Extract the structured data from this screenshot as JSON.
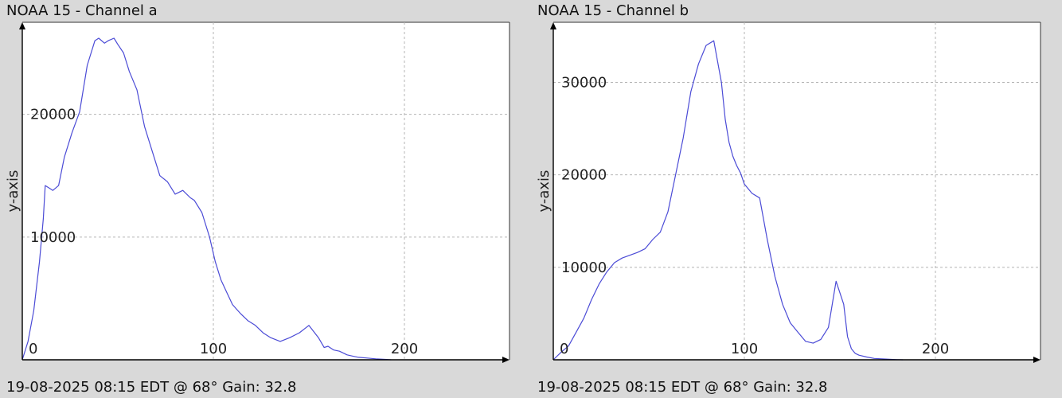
{
  "chart_data": [
    {
      "type": "line",
      "title": "NOAA 15 - Channel a",
      "footer": "19-08-2025 08:15 EDT @ 68° Gain: 32.8",
      "ylabel": "y-axis",
      "xlabel": "",
      "xlim": [
        0,
        255
      ],
      "ylim": [
        0,
        27500
      ],
      "x_ticks": [
        0,
        100,
        200
      ],
      "x_tick_labels": [
        "0",
        "100",
        "200"
      ],
      "y_ticks": [
        10000,
        20000
      ],
      "y_tick_labels": [
        "10000",
        "20000"
      ],
      "grid": true,
      "line_color": "#4b4bd6",
      "x": [
        0,
        3,
        6,
        9,
        11,
        12,
        14,
        16,
        19,
        22,
        26,
        30,
        34,
        38,
        40,
        43,
        45,
        48,
        50,
        53,
        56,
        60,
        64,
        68,
        72,
        76,
        80,
        84,
        88,
        90,
        94,
        98,
        101,
        104,
        107,
        110,
        114,
        118,
        122,
        126,
        130,
        135,
        140,
        145,
        150,
        155,
        158,
        160,
        163,
        166,
        170,
        173,
        176,
        180,
        185,
        190,
        193
      ],
      "y": [
        0,
        1500,
        4000,
        8000,
        11500,
        14200,
        14000,
        13800,
        14200,
        16500,
        18500,
        20200,
        24000,
        26000,
        26200,
        25800,
        26000,
        26200,
        25700,
        25000,
        23500,
        22000,
        19000,
        17000,
        15000,
        14500,
        13500,
        13800,
        13200,
        13000,
        12000,
        10000,
        8000,
        6500,
        5500,
        4500,
        3800,
        3200,
        2800,
        2200,
        1800,
        1500,
        1800,
        2200,
        2800,
        1800,
        1000,
        1100,
        800,
        700,
        400,
        300,
        200,
        150,
        80,
        30,
        0
      ]
    },
    {
      "type": "line",
      "title": "NOAA 15 - Channel b",
      "footer": "19-08-2025 08:15 EDT @ 68° Gain: 32.8",
      "ylabel": "y-axis",
      "xlabel": "",
      "xlim": [
        0,
        255
      ],
      "ylim": [
        0,
        36500
      ],
      "x_ticks": [
        0,
        100,
        200
      ],
      "x_tick_labels": [
        "0",
        "100",
        "200"
      ],
      "y_ticks": [
        10000,
        20000,
        30000
      ],
      "y_tick_labels": [
        "10000",
        "20000",
        "30000"
      ],
      "grid": true,
      "line_color": "#4b4bd6",
      "x": [
        0,
        4,
        8,
        12,
        16,
        20,
        24,
        28,
        32,
        36,
        40,
        44,
        48,
        52,
        56,
        60,
        64,
        68,
        72,
        76,
        80,
        84,
        88,
        90,
        92,
        94,
        96,
        98,
        100,
        104,
        108,
        112,
        116,
        120,
        124,
        128,
        132,
        136,
        140,
        144,
        148,
        152,
        154,
        156,
        158,
        160,
        164,
        168,
        172,
        176,
        180,
        183
      ],
      "y": [
        0,
        800,
        1500,
        3000,
        4500,
        6500,
        8200,
        9500,
        10500,
        11000,
        11300,
        11600,
        12000,
        13000,
        13800,
        16000,
        20000,
        24000,
        29000,
        32000,
        34000,
        34500,
        30000,
        26000,
        23500,
        22000,
        21000,
        20200,
        19000,
        18000,
        17500,
        13000,
        9000,
        6000,
        4000,
        3000,
        2000,
        1800,
        2200,
        3500,
        8500,
        6000,
        2500,
        1200,
        700,
        500,
        300,
        150,
        100,
        50,
        20,
        0
      ]
    }
  ]
}
